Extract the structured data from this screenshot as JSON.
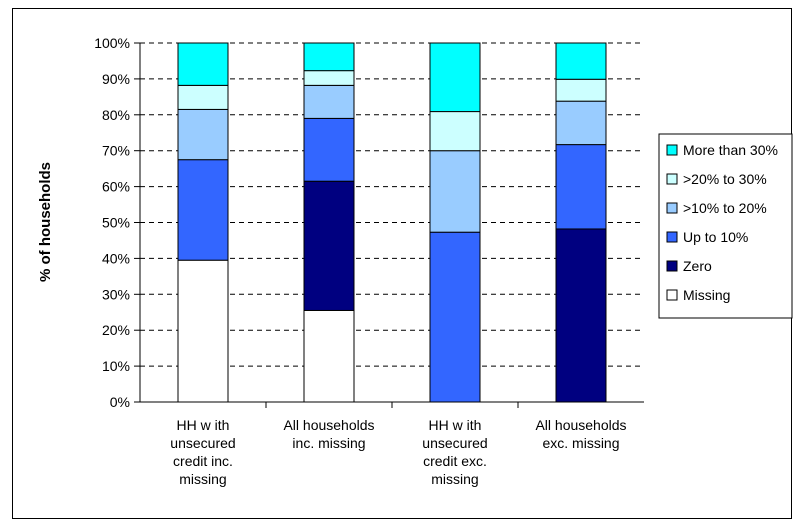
{
  "chart_data": {
    "type": "bar",
    "stacked": true,
    "ylabel": "% of households",
    "ylim": [
      0,
      100
    ],
    "yticks": [
      "0%",
      "10%",
      "20%",
      "30%",
      "40%",
      "50%",
      "60%",
      "70%",
      "80%",
      "90%",
      "100%"
    ],
    "categories": [
      [
        "HH w ith",
        "unsecured",
        "credit inc.",
        "missing"
      ],
      [
        "All households",
        "inc. missing"
      ],
      [
        "HH w ith",
        "unsecured",
        "credit exc.",
        "missing"
      ],
      [
        "All households",
        "exc. missing"
      ]
    ],
    "series": [
      {
        "name": "Missing",
        "color": "#ffffff",
        "values": [
          39.5,
          25.5,
          0,
          0
        ]
      },
      {
        "name": "Zero",
        "color": "#000080",
        "values": [
          0,
          36,
          0,
          48.2
        ]
      },
      {
        "name": "Up to 10%",
        "color": "#3366ff",
        "values": [
          28,
          17.5,
          47.3,
          23.5
        ]
      },
      {
        "name": ">10% to 20%",
        "color": "#99ccff",
        "values": [
          14,
          9.2,
          22.7,
          12.1
        ]
      },
      {
        "name": ">20% to 30%",
        "color": "#ccffff",
        "values": [
          6.7,
          4.1,
          10.9,
          6.1
        ]
      },
      {
        "name": "More than 30%",
        "color": "#00ffff",
        "values": [
          11.8,
          7.7,
          19.1,
          10.1
        ]
      }
    ],
    "legend_position": "right",
    "grid": "dashed horizontal"
  }
}
